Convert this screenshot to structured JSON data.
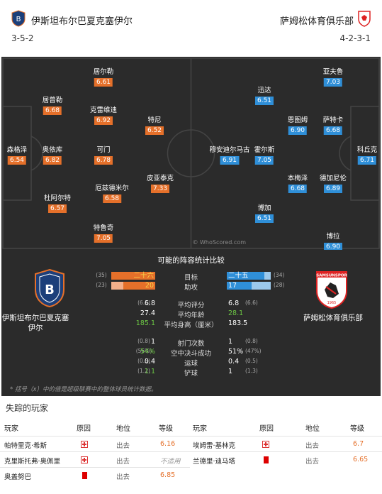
{
  "home": {
    "name": "伊斯坦布尔巴夏克塞伊尔",
    "formation": "3-5-2",
    "color": "#e5702a",
    "players": [
      {
        "name": "居尔勒",
        "rating": "6.61"
      },
      {
        "name": "居普勒",
        "rating": "6.68"
      },
      {
        "name": "克雷维迪",
        "rating": "6.92"
      },
      {
        "name": "特尼",
        "rating": "6.52"
      },
      {
        "name": "森格泽",
        "rating": "6.54"
      },
      {
        "name": "奥依库",
        "rating": "6.82"
      },
      {
        "name": "可门",
        "rating": "6.78"
      },
      {
        "name": "厄兹德米尔",
        "rating": "6.58"
      },
      {
        "name": "皮亚泰克",
        "rating": "7.33"
      },
      {
        "name": "杜阿尔特",
        "rating": "6.57"
      },
      {
        "name": "特鲁奇",
        "rating": "7.05"
      }
    ]
  },
  "away": {
    "name": "萨姆松体育俱乐部",
    "formation": "4-2-3-1",
    "color": "#2f8fd8",
    "players": [
      {
        "name": "亚夫鲁",
        "rating": "7.03"
      },
      {
        "name": "迅达",
        "rating": "6.51"
      },
      {
        "name": "恩图姆",
        "rating": "6.90"
      },
      {
        "name": "萨特卡",
        "rating": "6.68"
      },
      {
        "name": "穆安迪尔马古",
        "rating": "6.91"
      },
      {
        "name": "霍尔斯",
        "rating": "7.05"
      },
      {
        "name": "科丘克",
        "rating": "6.71"
      },
      {
        "name": "本梅泽",
        "rating": "6.68"
      },
      {
        "name": "德加尼伦",
        "rating": "6.89"
      },
      {
        "name": "博加",
        "rating": "6.51"
      },
      {
        "name": "博拉",
        "rating": "6.90"
      }
    ]
  },
  "watermark": "© WhoScored.com",
  "stats": {
    "title": "可能的阵容统计比较",
    "bars": [
      {
        "label": "目标",
        "home": "二十六",
        "home_rank": "(35)",
        "away": "二十五",
        "away_rank": "(34)",
        "home_fill": 1.0,
        "away_fill": 0.85
      },
      {
        "label": "助攻",
        "home": "20",
        "home_rank": "(23)",
        "away": "17",
        "away_rank": "(28)",
        "home_fill": 0.72,
        "away_fill": 0.57
      }
    ],
    "rows": [
      {
        "label": "平均评分",
        "home": "6.8",
        "home_rank": "(6.5)",
        "away": "6.8",
        "away_rank": "(6.6)",
        "highlight": ""
      },
      {
        "label": "平均年龄",
        "home": "27.4",
        "home_rank": "",
        "away": "28.1",
        "away_rank": "",
        "highlight": "away"
      },
      {
        "label": "平均身高（厘米）",
        "home": "185.1",
        "home_rank": "",
        "away": "183.5",
        "away_rank": "",
        "highlight": "home"
      },
      {
        "label": "射门次数",
        "home": "1",
        "home_rank": "(0.8)",
        "away": "1",
        "away_rank": "(0.8)",
        "highlight": ""
      },
      {
        "label": "空中决斗成功",
        "home": "54%",
        "home_rank": "(56%)",
        "away": "51%",
        "away_rank": "(47%)",
        "highlight": "home"
      },
      {
        "label": "运球",
        "home": "0.4",
        "home_rank": "(0.5)",
        "away": "0.4",
        "away_rank": "(0.5)",
        "highlight": ""
      },
      {
        "label": "铲球",
        "home": "1.1",
        "home_rank": "(1.2)",
        "away": "1",
        "away_rank": "(1.3)",
        "highlight": "home"
      }
    ],
    "home_team_label": "伊斯坦布尔巴夏克塞伊尔",
    "away_team_label": "萨姆松体育俱乐部",
    "away_badge_text": "SAMSUNSPOR",
    "away_badge_year": "1965",
    "note": "* 括号（x）中的值是超级联赛中的整体球员统计数据。"
  },
  "missing": {
    "title": "失踪的玩家",
    "headers": {
      "player": "玩家",
      "reason": "原因",
      "status": "地位",
      "rating": "等级"
    },
    "home": [
      {
        "player": "帕特里克·希斯",
        "type": "injury",
        "status": "出去",
        "rating": "6.16",
        "na": false
      },
      {
        "player": "克里斯托弗·奥佩里",
        "type": "injury",
        "status": "出去",
        "rating": "不适用",
        "na": true
      },
      {
        "player": "奥盖努巴",
        "type": "card",
        "status": "出去",
        "rating": "6.85",
        "na": false
      }
    ],
    "away": [
      {
        "player": "埃姆雷·基林克",
        "type": "injury",
        "status": "出去",
        "rating": "6.7",
        "na": false
      },
      {
        "player": "兰德里·迪马塔",
        "type": "card",
        "status": "出去",
        "rating": "6.65",
        "na": false
      }
    ]
  }
}
